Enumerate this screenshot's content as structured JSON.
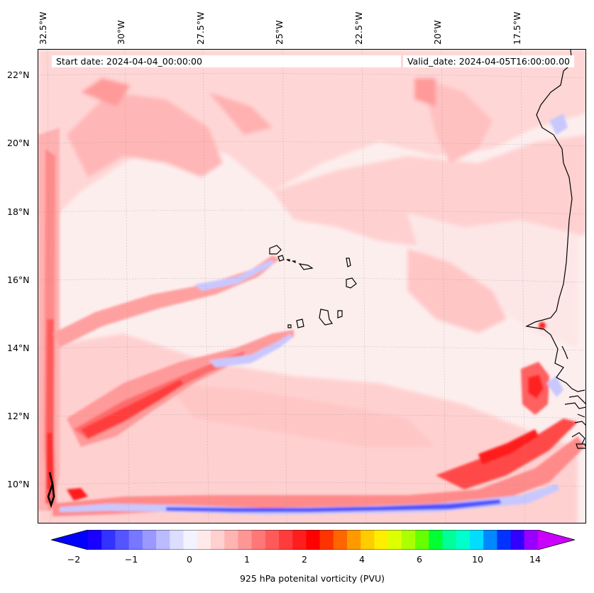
{
  "map": {
    "start_date": "Start date: 2024-04-04_00:00:00",
    "valid_date": "Valid_date: 2024-04-05T16:00:00.00",
    "lon_labels": [
      {
        "text": "32.5°W"
      },
      {
        "text": "30°W"
      },
      {
        "text": "27.5°W"
      },
      {
        "text": "25°W"
      },
      {
        "text": "22.5°W"
      },
      {
        "text": "20°W"
      },
      {
        "text": "17.5°W"
      }
    ],
    "lat_labels": [
      {
        "text": "22°N"
      },
      {
        "text": "20°N"
      },
      {
        "text": "18°N"
      },
      {
        "text": "16°N"
      },
      {
        "text": "14°N"
      },
      {
        "text": "12°N"
      },
      {
        "text": "10°N"
      }
    ],
    "colors": {
      "background": "#fdeeee",
      "light_pink": "#ffd0d0",
      "pink": "#ffaaaa",
      "salmon": "#ff8080",
      "red": "#ff4040",
      "deep_red": "#ff1010",
      "pale_blue": "#e4e4ff",
      "blue": "#6060ff",
      "deep_blue": "#2020ff"
    }
  },
  "colorbar": {
    "ticks": [
      "−2",
      "−1",
      "0",
      "1",
      "2",
      "4",
      "6",
      "10",
      "14"
    ],
    "label": "925 hPa potenital vorticity (PVU)",
    "colors": [
      "#1a00ff",
      "#3333ff",
      "#5555ff",
      "#7777ff",
      "#9999ff",
      "#bbbbff",
      "#ddddff",
      "#f3f3ff",
      "#ffeaea",
      "#ffd0d0",
      "#ffb4b4",
      "#ff9696",
      "#ff7878",
      "#ff5a5a",
      "#ff3c3c",
      "#ff1e1e",
      "#ff0000",
      "#ff3300",
      "#ff6600",
      "#ff9900",
      "#ffcc00",
      "#ffee00",
      "#ddff00",
      "#aaff00",
      "#66ff00",
      "#00ff33",
      "#00ff99",
      "#00ffcc",
      "#00ddff",
      "#0088ff",
      "#0033ff",
      "#3300ff",
      "#9900ff"
    ],
    "under_color": "#0000ff",
    "over_color": "#cc00ff"
  }
}
